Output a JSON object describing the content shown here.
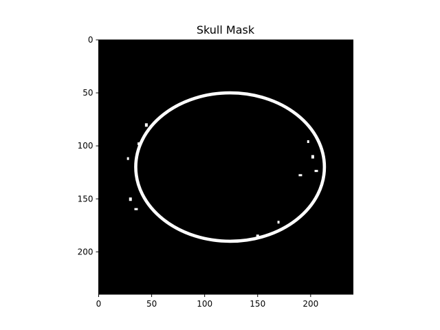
{
  "figure": {
    "title": "Skull Mask",
    "background_color": "#000000",
    "mask_color": "#ffffff"
  },
  "image": {
    "width": 240,
    "height": 240,
    "ring_center": [
      124,
      120
    ],
    "ring_radius_x": 89,
    "ring_radius_y": 70,
    "ring_thickness": 3
  },
  "axes": {
    "x_ticks": [
      0,
      50,
      100,
      150,
      200
    ],
    "y_ticks": [
      0,
      50,
      100,
      150,
      200
    ],
    "x_tick_labels": [
      "0",
      "50",
      "100",
      "150",
      "200"
    ],
    "y_tick_labels": [
      "0",
      "50",
      "100",
      "150",
      "200"
    ]
  }
}
